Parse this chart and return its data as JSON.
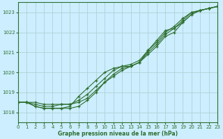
{
  "title": "Graphe pression niveau de la mer (hPa)",
  "bg_color": "#cceeff",
  "grid_color": "#aacccc",
  "line_color": "#2d6e2d",
  "xlim": [
    0,
    23
  ],
  "ylim": [
    1017.5,
    1023.5
  ],
  "yticks": [
    1018,
    1019,
    1020,
    1021,
    1022,
    1023
  ],
  "xticks": [
    0,
    1,
    2,
    3,
    4,
    5,
    6,
    7,
    8,
    9,
    10,
    11,
    12,
    13,
    14,
    15,
    16,
    17,
    18,
    19,
    20,
    21,
    22,
    23
  ],
  "series": [
    [
      1018.5,
      1018.5,
      1018.4,
      1018.3,
      1018.3,
      1018.4,
      1018.4,
      1018.5,
      1018.7,
      1019.1,
      1019.5,
      1019.8,
      1020.1,
      1020.3,
      1020.5,
      1020.9,
      1021.3,
      1021.8,
      1022.0,
      1022.5,
      1022.9,
      1023.1,
      1023.2,
      1023.3
    ],
    [
      1018.5,
      1018.5,
      1018.3,
      1018.2,
      1018.2,
      1018.2,
      1018.2,
      1018.3,
      1018.6,
      1019.0,
      1019.5,
      1019.9,
      1020.2,
      1020.3,
      1020.5,
      1021.0,
      1021.4,
      1021.9,
      1022.2,
      1022.5,
      1022.9,
      1023.1,
      1023.2,
      1023.3
    ],
    [
      1018.5,
      1018.5,
      1018.5,
      1018.4,
      1018.4,
      1018.4,
      1018.4,
      1018.6,
      1018.9,
      1019.3,
      1019.7,
      1020.1,
      1020.3,
      1020.4,
      1020.6,
      1021.1,
      1021.5,
      1022.0,
      1022.3,
      1022.7,
      1023.0,
      1023.1,
      1023.2,
      1023.3
    ],
    [
      1018.5,
      1018.5,
      1018.3,
      1018.2,
      1018.2,
      1018.2,
      1018.3,
      1018.8,
      1019.2,
      1019.6,
      1020.0,
      1020.2,
      1020.3,
      1020.3,
      1020.5,
      1021.1,
      1021.6,
      1022.1,
      1022.2,
      1022.6,
      1023.0,
      1023.1,
      1023.2,
      1023.3
    ]
  ]
}
